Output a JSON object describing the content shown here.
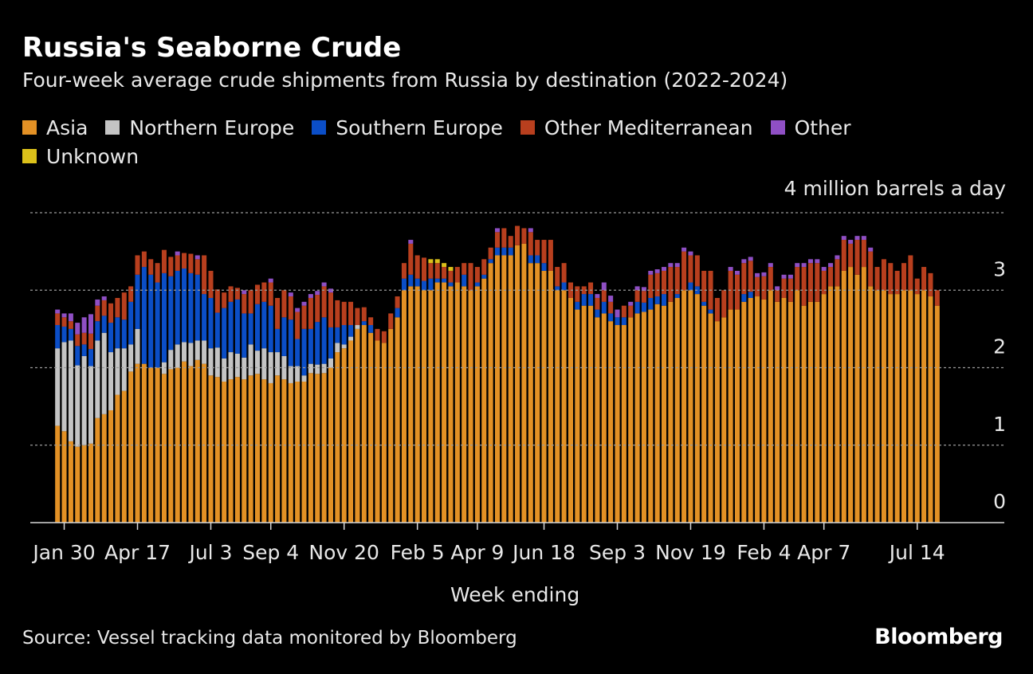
{
  "header": {
    "title": "Russia's Seaborne Crude",
    "subtitle": "Four-week average crude shipments from Russia by destination (2022-2024)",
    "unit_label": "4 million barrels a day"
  },
  "footer": {
    "source": "Source: Vessel tracking data monitored by Bloomberg",
    "brand": "Bloomberg"
  },
  "chart_data": {
    "type": "bar",
    "stacked": true,
    "title": "Russia's Seaborne Crude",
    "xlabel": "Week ending",
    "ylabel": "million barrels a day",
    "ylim": [
      0,
      4
    ],
    "yticks": [
      0,
      1,
      2,
      3,
      4
    ],
    "ytick_labels": [
      "0",
      "1",
      "2",
      "3",
      "4 million barrels a day"
    ],
    "grid": true,
    "legend_position": "top",
    "colors": {
      "Asia": "#e39125",
      "Northern Europe": "#c4c4c4",
      "Southern Europe": "#0b4ec7",
      "Other Mediterranean": "#b83f1e",
      "Other": "#8f4fc4",
      "Unknown": "#dcc11a"
    },
    "xtick_labels": [
      {
        "label": "Jan 30",
        "index": 1
      },
      {
        "label": "Apr 17",
        "index": 12
      },
      {
        "label": "Jul 3",
        "index": 23
      },
      {
        "label": "Sep 4",
        "index": 32
      },
      {
        "label": "Nov 20",
        "index": 43
      },
      {
        "label": "Feb 5",
        "index": 54
      },
      {
        "label": "Apr 9",
        "index": 63
      },
      {
        "label": "Jun 18",
        "index": 73
      },
      {
        "label": "Sep 3",
        "index": 84
      },
      {
        "label": "Nov 19",
        "index": 95
      },
      {
        "label": "Feb 4",
        "index": 106
      },
      {
        "label": "Apr 7",
        "index": 115
      },
      {
        "label": "Jul 14",
        "index": 129
      }
    ],
    "series": [
      {
        "name": "Asia",
        "values": [
          1.25,
          1.18,
          1.05,
          0.98,
          1.0,
          1.02,
          1.35,
          1.4,
          1.45,
          1.65,
          1.7,
          1.95,
          2.05,
          2.05,
          2.0,
          2.0,
          1.92,
          1.98,
          2.0,
          2.08,
          2.02,
          2.1,
          2.05,
          1.9,
          1.88,
          1.82,
          1.85,
          1.88,
          1.85,
          1.9,
          1.92,
          1.85,
          1.8,
          1.9,
          1.85,
          1.8,
          1.82,
          1.82,
          1.93,
          1.92,
          1.93,
          2.0,
          2.2,
          2.25,
          2.35,
          2.5,
          2.55,
          2.45,
          2.35,
          2.32,
          2.5,
          2.65,
          3.0,
          3.05,
          3.05,
          3.0,
          3.0,
          3.1,
          3.1,
          3.05,
          3.1,
          3.05,
          3.0,
          3.05,
          3.15,
          3.35,
          3.45,
          3.45,
          3.45,
          3.58,
          3.6,
          3.35,
          3.35,
          3.25,
          3.25,
          3.0,
          3.0,
          2.9,
          2.75,
          2.8,
          2.8,
          2.65,
          2.7,
          2.6,
          2.55,
          2.55,
          2.65,
          2.7,
          2.72,
          2.75,
          2.82,
          2.8,
          2.85,
          2.9,
          3.0,
          3.0,
          2.95,
          2.8,
          2.7,
          2.6,
          2.65,
          2.75,
          2.75,
          2.85,
          2.9,
          2.92,
          2.88,
          3.0,
          2.85,
          2.9,
          2.85,
          3.0,
          2.8,
          2.85,
          2.85,
          2.95,
          3.05,
          3.05,
          3.25,
          3.3,
          3.2,
          3.3,
          3.05,
          3.0,
          3.0,
          2.95,
          2.95,
          3.0,
          3.0,
          2.95,
          3.0,
          2.92,
          2.8
        ]
      },
      {
        "name": "Northern Europe",
        "values": [
          1.0,
          1.15,
          1.3,
          1.05,
          1.15,
          1.0,
          1.0,
          1.05,
          0.75,
          0.6,
          0.55,
          0.35,
          0.45,
          0.0,
          0.0,
          0.0,
          0.15,
          0.25,
          0.3,
          0.25,
          0.3,
          0.25,
          0.3,
          0.35,
          0.38,
          0.3,
          0.35,
          0.3,
          0.28,
          0.4,
          0.3,
          0.4,
          0.4,
          0.3,
          0.3,
          0.22,
          0.2,
          0.08,
          0.12,
          0.12,
          0.12,
          0.12,
          0.12,
          0.05,
          0.05,
          0.05,
          0.0,
          0.0,
          0.0,
          0.0,
          0.0,
          0.0,
          0.0,
          0.0,
          0.0,
          0.0,
          0.0,
          0.0,
          0.0,
          0.0,
          0.0,
          0.0,
          0.0,
          0.0,
          0.0,
          0.0,
          0.0,
          0.0,
          0.0,
          0.0,
          0.0,
          0.0,
          0.0,
          0.0,
          0.0,
          0.0,
          0.0,
          0.0,
          0.0,
          0.0,
          0.0,
          0.0,
          0.0,
          0.0,
          0.0,
          0.0,
          0.0,
          0.0,
          0.0,
          0.0,
          0.0,
          0.0,
          0.0,
          0.0,
          0.0,
          0.0,
          0.0,
          0.0,
          0.0,
          0.0,
          0.0,
          0.0,
          0.0,
          0.0,
          0.0,
          0.0,
          0.0,
          0.0,
          0.0,
          0.0,
          0.0,
          0.0,
          0.0,
          0.0,
          0.0,
          0.0,
          0.0,
          0.0,
          0.0,
          0.0,
          0.0,
          0.0,
          0.0,
          0.0,
          0.0,
          0.0,
          0.0,
          0.0,
          0.0,
          0.0,
          0.0,
          0.0,
          0.0
        ]
      },
      {
        "name": "Southern Europe",
        "values": [
          0.3,
          0.2,
          0.15,
          0.25,
          0.15,
          0.22,
          0.25,
          0.22,
          0.38,
          0.4,
          0.37,
          0.55,
          0.7,
          1.25,
          1.2,
          1.1,
          1.15,
          0.95,
          0.95,
          0.95,
          0.9,
          0.85,
          0.6,
          0.65,
          0.45,
          0.65,
          0.65,
          0.7,
          0.57,
          0.4,
          0.6,
          0.6,
          0.6,
          0.3,
          0.5,
          0.6,
          0.35,
          0.6,
          0.45,
          0.55,
          0.6,
          0.4,
          0.2,
          0.25,
          0.15,
          0.0,
          0.05,
          0.1,
          0.0,
          0.0,
          0.0,
          0.12,
          0.15,
          0.15,
          0.1,
          0.12,
          0.15,
          0.05,
          0.05,
          0.05,
          0.0,
          0.15,
          0.0,
          0.05,
          0.05,
          0.05,
          0.1,
          0.1,
          0.1,
          0.0,
          0.0,
          0.1,
          0.1,
          0.1,
          0.0,
          0.05,
          0.1,
          0.0,
          0.1,
          0.15,
          0.15,
          0.1,
          0.15,
          0.1,
          0.1,
          0.1,
          0.0,
          0.15,
          0.12,
          0.15,
          0.1,
          0.15,
          0.0,
          0.05,
          0.0,
          0.1,
          0.1,
          0.05,
          0.05,
          0.0,
          0.0,
          0.0,
          0.0,
          0.1,
          0.08,
          0.0,
          0.0,
          0.0,
          0.0,
          0.0,
          0.0,
          0.0,
          0.0,
          0.0,
          0.0,
          0.0,
          0.0,
          0.0,
          0.0,
          0.0,
          0.0,
          0.0,
          0.0,
          0.0,
          0.0,
          0.0,
          0.0,
          0.0,
          0.0,
          0.0,
          0.0,
          0.0,
          0.0
        ]
      },
      {
        "name": "Other Mediterranean",
        "values": [
          0.15,
          0.12,
          0.1,
          0.15,
          0.15,
          0.2,
          0.2,
          0.2,
          0.25,
          0.25,
          0.35,
          0.2,
          0.25,
          0.2,
          0.2,
          0.25,
          0.3,
          0.25,
          0.2,
          0.2,
          0.25,
          0.2,
          0.5,
          0.35,
          0.3,
          0.2,
          0.2,
          0.15,
          0.25,
          0.3,
          0.25,
          0.25,
          0.3,
          0.4,
          0.35,
          0.3,
          0.35,
          0.3,
          0.4,
          0.35,
          0.4,
          0.45,
          0.35,
          0.3,
          0.3,
          0.22,
          0.18,
          0.1,
          0.15,
          0.15,
          0.2,
          0.15,
          0.2,
          0.4,
          0.3,
          0.3,
          0.2,
          0.2,
          0.15,
          0.15,
          0.2,
          0.15,
          0.35,
          0.2,
          0.2,
          0.15,
          0.2,
          0.25,
          0.15,
          0.25,
          0.2,
          0.3,
          0.2,
          0.3,
          0.4,
          0.25,
          0.25,
          0.2,
          0.2,
          0.1,
          0.15,
          0.15,
          0.15,
          0.15,
          0.0,
          0.15,
          0.15,
          0.15,
          0.15,
          0.3,
          0.3,
          0.3,
          0.45,
          0.35,
          0.5,
          0.35,
          0.4,
          0.4,
          0.5,
          0.3,
          0.35,
          0.5,
          0.45,
          0.4,
          0.4,
          0.25,
          0.3,
          0.3,
          0.15,
          0.25,
          0.3,
          0.3,
          0.5,
          0.5,
          0.5,
          0.3,
          0.25,
          0.35,
          0.4,
          0.3,
          0.45,
          0.35,
          0.45,
          0.3,
          0.4,
          0.4,
          0.3,
          0.35,
          0.45,
          0.2,
          0.3,
          0.3,
          0.2
        ]
      },
      {
        "name": "Other",
        "values": [
          0.05,
          0.05,
          0.1,
          0.15,
          0.2,
          0.25,
          0.08,
          0.05,
          0.0,
          0.0,
          0.0,
          0.0,
          0.0,
          0.0,
          0.0,
          0.0,
          0.0,
          0.0,
          0.05,
          0.0,
          0.0,
          0.05,
          0.0,
          0.0,
          0.0,
          0.0,
          0.0,
          0.0,
          0.05,
          0.0,
          0.0,
          0.0,
          0.05,
          0.0,
          0.0,
          0.05,
          0.05,
          0.05,
          0.05,
          0.05,
          0.05,
          0.05,
          0.0,
          0.0,
          0.0,
          0.0,
          0.0,
          0.0,
          0.0,
          0.0,
          0.0,
          0.0,
          0.0,
          0.05,
          0.0,
          0.0,
          0.0,
          0.0,
          0.0,
          0.0,
          0.0,
          0.0,
          0.0,
          0.0,
          0.0,
          0.0,
          0.05,
          0.0,
          0.0,
          0.0,
          0.0,
          0.05,
          0.0,
          0.0,
          0.0,
          0.0,
          0.0,
          0.0,
          0.0,
          0.0,
          0.0,
          0.05,
          0.1,
          0.08,
          0.1,
          0.0,
          0.05,
          0.05,
          0.05,
          0.05,
          0.05,
          0.05,
          0.05,
          0.05,
          0.05,
          0.05,
          0.0,
          0.0,
          0.0,
          0.0,
          0.0,
          0.05,
          0.05,
          0.05,
          0.05,
          0.05,
          0.05,
          0.05,
          0.05,
          0.05,
          0.05,
          0.05,
          0.05,
          0.05,
          0.05,
          0.05,
          0.05,
          0.05,
          0.05,
          0.05,
          0.05,
          0.05,
          0.05,
          0.0,
          0.0,
          0.0,
          0.0,
          0.0,
          0.0,
          0.0,
          0.0,
          0.0,
          0.0
        ]
      },
      {
        "name": "Unknown",
        "values": [
          0.0,
          0.0,
          0.0,
          0.0,
          0.0,
          0.0,
          0.0,
          0.0,
          0.0,
          0.0,
          0.0,
          0.0,
          0.0,
          0.0,
          0.0,
          0.0,
          0.0,
          0.0,
          0.0,
          0.0,
          0.0,
          0.0,
          0.0,
          0.0,
          0.0,
          0.0,
          0.0,
          0.0,
          0.0,
          0.0,
          0.0,
          0.0,
          0.0,
          0.0,
          0.0,
          0.0,
          0.0,
          0.0,
          0.0,
          0.0,
          0.0,
          0.0,
          0.0,
          0.0,
          0.0,
          0.0,
          0.0,
          0.0,
          0.0,
          0.0,
          0.0,
          0.0,
          0.0,
          0.0,
          0.0,
          0.0,
          0.05,
          0.05,
          0.05,
          0.05,
          0.0,
          0.0,
          0.0,
          0.0,
          0.0,
          0.0,
          0.0,
          0.0,
          0.0,
          0.0,
          0.0,
          0.0,
          0.0,
          0.0,
          0.0,
          0.0,
          0.0,
          0.0,
          0.0,
          0.0,
          0.0,
          0.0,
          0.0,
          0.0,
          0.0,
          0.0,
          0.0,
          0.0,
          0.0,
          0.0,
          0.0,
          0.0,
          0.0,
          0.0,
          0.0,
          0.0,
          0.0,
          0.0,
          0.0,
          0.0,
          0.0,
          0.0,
          0.0,
          0.0,
          0.0,
          0.0,
          0.0,
          0.0,
          0.0,
          0.0,
          0.0,
          0.0,
          0.0,
          0.0,
          0.0,
          0.0,
          0.0,
          0.0,
          0.0,
          0.0,
          0.0,
          0.0,
          0.0,
          0.0,
          0.0,
          0.0,
          0.0,
          0.0,
          0.0,
          0.0,
          0.0,
          0.0,
          0.0
        ]
      }
    ]
  }
}
